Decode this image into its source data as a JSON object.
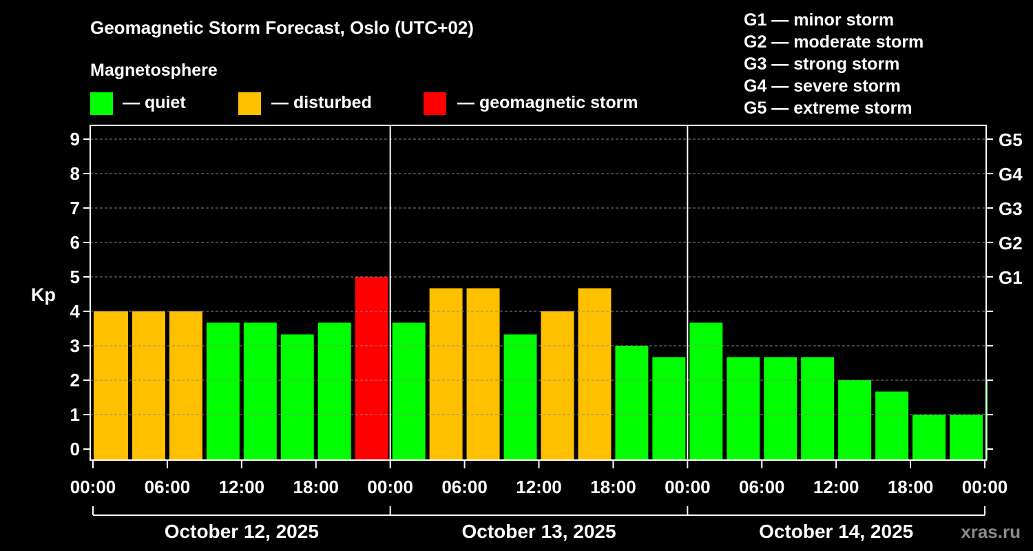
{
  "title": "Geomagnetic Storm Forecast, Oslo (UTC+02)",
  "legend": {
    "heading": "Magnetosphere",
    "items": [
      {
        "label": "— quiet",
        "color": "#00ff00"
      },
      {
        "label": "— disturbed",
        "color": "#ffc000"
      },
      {
        "label": "— geomagnetic storm",
        "color": "#ff0000"
      }
    ]
  },
  "storm_scale": [
    "G1 — minor storm",
    "G2 — moderate storm",
    "G3 — strong storm",
    "G4 — severe storm",
    "G5 — extreme storm"
  ],
  "watermark": "xras.ru",
  "chart_data": {
    "type": "bar",
    "ylabel": "Kp",
    "ylim": [
      0,
      9
    ],
    "yticks": [
      0,
      1,
      2,
      3,
      4,
      5,
      6,
      7,
      8,
      9
    ],
    "right_axis": [
      {
        "kp": 5,
        "label": "G1"
      },
      {
        "kp": 6,
        "label": "G2"
      },
      {
        "kp": 7,
        "label": "G3"
      },
      {
        "kp": 8,
        "label": "G4"
      },
      {
        "kp": 9,
        "label": "G5"
      }
    ],
    "xtick_labels": [
      "00:00",
      "06:00",
      "12:00",
      "18:00",
      "00:00",
      "06:00",
      "12:00",
      "18:00",
      "00:00",
      "06:00",
      "12:00",
      "18:00",
      "00:00",
      "06:00",
      "12:00",
      "18:00",
      "00:00"
    ],
    "days": [
      "October 12, 2025",
      "October 13, 2025",
      "October 14, 2025"
    ],
    "grid": true,
    "values": [
      4.0,
      4.0,
      4.0,
      3.67,
      3.67,
      3.33,
      3.67,
      5.0,
      3.67,
      4.67,
      4.67,
      3.33,
      4.0,
      4.67,
      3.0,
      2.67,
      3.67,
      2.67,
      2.67,
      2.67,
      2.0,
      1.67,
      1.0,
      1.0,
      2.0
    ],
    "colors": [
      "#ffc000",
      "#ffc000",
      "#ffc000",
      "#00ff00",
      "#00ff00",
      "#00ff00",
      "#00ff00",
      "#ff0000",
      "#00ff00",
      "#ffc000",
      "#ffc000",
      "#00ff00",
      "#ffc000",
      "#ffc000",
      "#00ff00",
      "#00ff00",
      "#00ff00",
      "#00ff00",
      "#00ff00",
      "#00ff00",
      "#00ff00",
      "#00ff00",
      "#00ff00",
      "#00ff00",
      "#00ff00"
    ]
  }
}
